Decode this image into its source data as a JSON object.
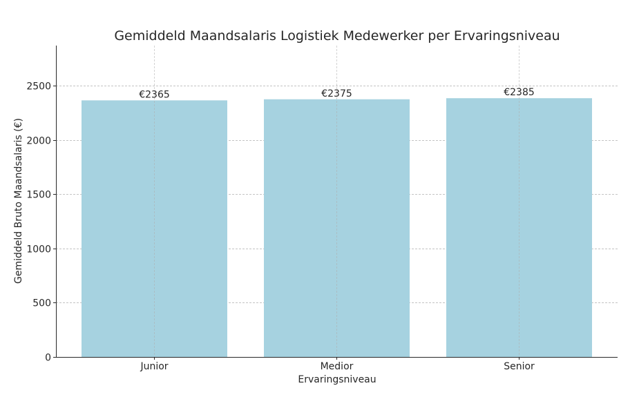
{
  "chart_data": {
    "type": "bar",
    "title": "Gemiddeld Maandsalaris Logistiek Medewerker per Ervaringsniveau",
    "xlabel": "Ervaringsniveau",
    "ylabel": "Gemiddeld Bruto Maandsalaris (€)",
    "categories": [
      "Junior",
      "Medior",
      "Senior"
    ],
    "values": [
      2365,
      2375,
      2385
    ],
    "data_labels": [
      "€2365",
      "€2375",
      "€2385"
    ],
    "ylim": [
      0,
      2870
    ],
    "yticks": [
      0,
      500,
      1000,
      1500,
      2000,
      2500
    ],
    "ytick_labels": [
      "0",
      "500",
      "1000",
      "1500",
      "2000",
      "2500"
    ],
    "grid": true,
    "bar_color": "#a6d2e0"
  }
}
